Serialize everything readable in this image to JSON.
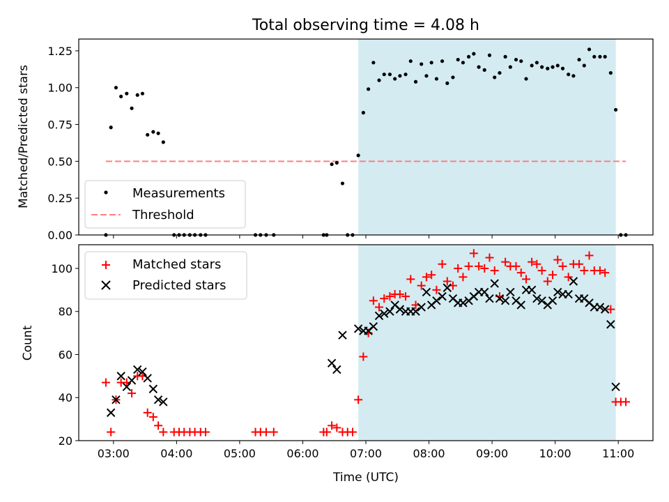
{
  "title": "Total observing time = 4.08 h",
  "colors": {
    "shade": "#d4ebf1",
    "measurement": "#000000",
    "threshold": "#ff7f7f",
    "matched": "#ff0000",
    "predicted": "#000000"
  },
  "x_axis": {
    "label": "Time (UTC)",
    "ticks": [
      "03:00",
      "04:00",
      "05:00",
      "06:00",
      "07:00",
      "08:00",
      "09:00",
      "10:00",
      "11:00"
    ]
  },
  "chart_data": [
    {
      "type": "scatter",
      "ylabel": "Matched/Predicted stars",
      "x_unit": "hours UTC",
      "xlim": [
        2.45,
        11.55
      ],
      "ylim": [
        0,
        1.33
      ],
      "yticks": [
        "0.00",
        "0.25",
        "0.50",
        "0.75",
        "1.00",
        "1.25"
      ],
      "shaded_interval": [
        6.88,
        10.96
      ],
      "legend": {
        "position": "lower-left",
        "entries": [
          "Measurements",
          "Threshold"
        ]
      },
      "threshold": {
        "name": "Threshold",
        "y": 0.5,
        "x_range": [
          2.88,
          11.12
        ]
      },
      "series": [
        {
          "name": "Measurements",
          "marker": "dot",
          "points": [
            [
              2.88,
              0.0
            ],
            [
              2.96,
              0.73
            ],
            [
              3.04,
              1.0
            ],
            [
              3.12,
              0.94
            ],
            [
              3.21,
              0.96
            ],
            [
              3.29,
              0.86
            ],
            [
              3.38,
              0.95
            ],
            [
              3.46,
              0.96
            ],
            [
              3.54,
              0.68
            ],
            [
              3.63,
              0.7
            ],
            [
              3.71,
              0.69
            ],
            [
              3.79,
              0.63
            ],
            [
              3.96,
              0.0
            ],
            [
              4.04,
              0.0
            ],
            [
              4.12,
              0.0
            ],
            [
              4.21,
              0.0
            ],
            [
              4.29,
              0.0
            ],
            [
              4.38,
              0.0
            ],
            [
              4.46,
              0.0
            ],
            [
              5.25,
              0.0
            ],
            [
              5.33,
              0.0
            ],
            [
              5.42,
              0.0
            ],
            [
              5.54,
              0.0
            ],
            [
              6.33,
              0.0
            ],
            [
              6.38,
              0.0
            ],
            [
              6.46,
              0.48
            ],
            [
              6.54,
              0.49
            ],
            [
              6.63,
              0.35
            ],
            [
              6.71,
              0.0
            ],
            [
              6.79,
              0.0
            ],
            [
              6.88,
              0.54
            ],
            [
              6.96,
              0.83
            ],
            [
              7.04,
              0.99
            ],
            [
              7.12,
              1.17
            ],
            [
              7.21,
              1.05
            ],
            [
              7.29,
              1.09
            ],
            [
              7.38,
              1.09
            ],
            [
              7.46,
              1.06
            ],
            [
              7.54,
              1.08
            ],
            [
              7.63,
              1.09
            ],
            [
              7.71,
              1.18
            ],
            [
              7.79,
              1.04
            ],
            [
              7.88,
              1.16
            ],
            [
              7.96,
              1.08
            ],
            [
              8.04,
              1.17
            ],
            [
              8.12,
              1.06
            ],
            [
              8.21,
              1.18
            ],
            [
              8.29,
              1.03
            ],
            [
              8.38,
              1.07
            ],
            [
              8.46,
              1.19
            ],
            [
              8.54,
              1.17
            ],
            [
              8.63,
              1.21
            ],
            [
              8.71,
              1.23
            ],
            [
              8.79,
              1.14
            ],
            [
              8.88,
              1.12
            ],
            [
              8.96,
              1.22
            ],
            [
              9.04,
              1.07
            ],
            [
              9.12,
              1.1
            ],
            [
              9.21,
              1.21
            ],
            [
              9.29,
              1.14
            ],
            [
              9.38,
              1.19
            ],
            [
              9.46,
              1.18
            ],
            [
              9.54,
              1.06
            ],
            [
              9.63,
              1.15
            ],
            [
              9.71,
              1.17
            ],
            [
              9.79,
              1.14
            ],
            [
              9.88,
              1.13
            ],
            [
              9.96,
              1.14
            ],
            [
              10.04,
              1.15
            ],
            [
              10.12,
              1.13
            ],
            [
              10.21,
              1.09
            ],
            [
              10.29,
              1.08
            ],
            [
              10.38,
              1.19
            ],
            [
              10.46,
              1.15
            ],
            [
              10.54,
              1.26
            ],
            [
              10.62,
              1.21
            ],
            [
              10.71,
              1.21
            ],
            [
              10.79,
              1.21
            ],
            [
              10.88,
              1.1
            ],
            [
              10.96,
              0.85
            ],
            [
              11.04,
              0.0
            ],
            [
              11.12,
              0.0
            ]
          ]
        }
      ]
    },
    {
      "type": "scatter",
      "ylabel": "Count",
      "x_unit": "hours UTC",
      "xlim": [
        2.45,
        11.55
      ],
      "ylim": [
        20,
        111
      ],
      "yticks": [
        "20",
        "40",
        "60",
        "80",
        "100"
      ],
      "shaded_interval": [
        6.88,
        10.96
      ],
      "legend": {
        "position": "upper-left",
        "entries": [
          "Matched stars",
          "Predicted stars"
        ]
      },
      "series": [
        {
          "name": "Matched stars",
          "marker": "plus",
          "points": [
            [
              2.88,
              47
            ],
            [
              2.96,
              24
            ],
            [
              3.04,
              39
            ],
            [
              3.12,
              47
            ],
            [
              3.21,
              47
            ],
            [
              3.29,
              42
            ],
            [
              3.38,
              50
            ],
            [
              3.46,
              50
            ],
            [
              3.54,
              33
            ],
            [
              3.63,
              31
            ],
            [
              3.71,
              27
            ],
            [
              3.79,
              24
            ],
            [
              3.96,
              24
            ],
            [
              4.04,
              24
            ],
            [
              4.12,
              24
            ],
            [
              4.21,
              24
            ],
            [
              4.29,
              24
            ],
            [
              4.38,
              24
            ],
            [
              4.46,
              24
            ],
            [
              5.25,
              24
            ],
            [
              5.33,
              24
            ],
            [
              5.42,
              24
            ],
            [
              5.54,
              24
            ],
            [
              6.33,
              24
            ],
            [
              6.38,
              24
            ],
            [
              6.46,
              27
            ],
            [
              6.54,
              26
            ],
            [
              6.63,
              24
            ],
            [
              6.71,
              24
            ],
            [
              6.79,
              24
            ],
            [
              6.88,
              39
            ],
            [
              6.96,
              59
            ],
            [
              7.04,
              70
            ],
            [
              7.12,
              85
            ],
            [
              7.21,
              82
            ],
            [
              7.29,
              86
            ],
            [
              7.38,
              87
            ],
            [
              7.46,
              88
            ],
            [
              7.54,
              88
            ],
            [
              7.63,
              87
            ],
            [
              7.71,
              95
            ],
            [
              7.79,
              83
            ],
            [
              7.88,
              92
            ],
            [
              7.96,
              96
            ],
            [
              8.04,
              97
            ],
            [
              8.12,
              90
            ],
            [
              8.21,
              102
            ],
            [
              8.29,
              94
            ],
            [
              8.38,
              92
            ],
            [
              8.46,
              100
            ],
            [
              8.54,
              96
            ],
            [
              8.63,
              101
            ],
            [
              8.71,
              107
            ],
            [
              8.79,
              101
            ],
            [
              8.88,
              100
            ],
            [
              8.96,
              105
            ],
            [
              9.04,
              99
            ],
            [
              9.12,
              87
            ],
            [
              9.21,
              103
            ],
            [
              9.29,
              101
            ],
            [
              9.38,
              101
            ],
            [
              9.46,
              98
            ],
            [
              9.54,
              95
            ],
            [
              9.63,
              103
            ],
            [
              9.71,
              102
            ],
            [
              9.79,
              99
            ],
            [
              9.88,
              94
            ],
            [
              9.96,
              97
            ],
            [
              10.04,
              104
            ],
            [
              10.12,
              101
            ],
            [
              10.21,
              96
            ],
            [
              10.29,
              102
            ],
            [
              10.38,
              102
            ],
            [
              10.46,
              99
            ],
            [
              10.54,
              106
            ],
            [
              10.62,
              99
            ],
            [
              10.71,
              99
            ],
            [
              10.79,
              98
            ],
            [
              10.88,
              81
            ],
            [
              10.96,
              38
            ],
            [
              11.04,
              38
            ],
            [
              11.12,
              38
            ]
          ]
        },
        {
          "name": "Predicted stars",
          "marker": "x",
          "points": [
            [
              2.96,
              33
            ],
            [
              3.04,
              39
            ],
            [
              3.12,
              50
            ],
            [
              3.21,
              45
            ],
            [
              3.29,
              48
            ],
            [
              3.38,
              53
            ],
            [
              3.46,
              52
            ],
            [
              3.54,
              49
            ],
            [
              3.63,
              44
            ],
            [
              3.71,
              39
            ],
            [
              3.79,
              38
            ],
            [
              6.46,
              56
            ],
            [
              6.54,
              53
            ],
            [
              6.63,
              69
            ],
            [
              6.88,
              72
            ],
            [
              6.96,
              71
            ],
            [
              7.04,
              71
            ],
            [
              7.12,
              73
            ],
            [
              7.21,
              78
            ],
            [
              7.29,
              79
            ],
            [
              7.38,
              80
            ],
            [
              7.46,
              83
            ],
            [
              7.54,
              81
            ],
            [
              7.63,
              80
            ],
            [
              7.71,
              80
            ],
            [
              7.79,
              80
            ],
            [
              7.88,
              82
            ],
            [
              7.96,
              89
            ],
            [
              8.04,
              83
            ],
            [
              8.12,
              85
            ],
            [
              8.21,
              87
            ],
            [
              8.29,
              91
            ],
            [
              8.38,
              86
            ],
            [
              8.46,
              84
            ],
            [
              8.54,
              84
            ],
            [
              8.63,
              85
            ],
            [
              8.71,
              87
            ],
            [
              8.79,
              89
            ],
            [
              8.88,
              89
            ],
            [
              8.96,
              86
            ],
            [
              9.04,
              93
            ],
            [
              9.12,
              86
            ],
            [
              9.21,
              85
            ],
            [
              9.29,
              89
            ],
            [
              9.38,
              85
            ],
            [
              9.46,
              83
            ],
            [
              9.54,
              90
            ],
            [
              9.63,
              90
            ],
            [
              9.71,
              86
            ],
            [
              9.79,
              85
            ],
            [
              9.88,
              83
            ],
            [
              9.96,
              85
            ],
            [
              10.04,
              89
            ],
            [
              10.12,
              88
            ],
            [
              10.21,
              88
            ],
            [
              10.29,
              94
            ],
            [
              10.38,
              86
            ],
            [
              10.46,
              86
            ],
            [
              10.54,
              84
            ],
            [
              10.62,
              82
            ],
            [
              10.71,
              82
            ],
            [
              10.79,
              81
            ],
            [
              10.88,
              74
            ],
            [
              10.96,
              45
            ]
          ]
        }
      ]
    }
  ]
}
